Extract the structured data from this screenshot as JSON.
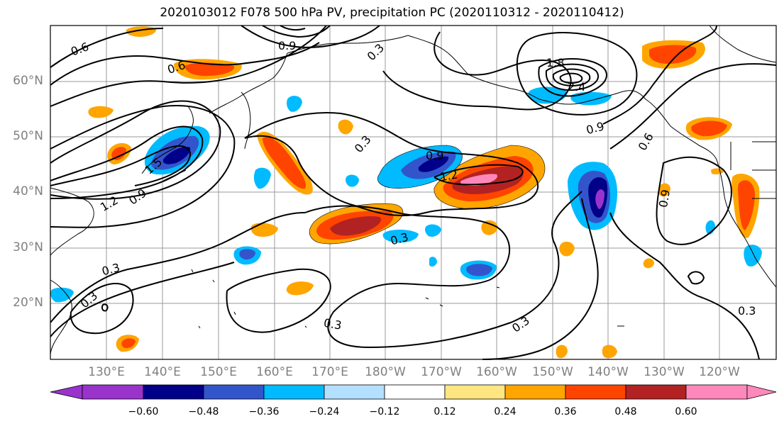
{
  "title": "2020103012 F078 500 hPa PV, precipitation PC (2020110312 - 2020110412)",
  "lat_labels": [
    "60°N",
    "50°N",
    "40°N",
    "30°N",
    "20°N"
  ],
  "lon_labels": [
    "130°E",
    "140°E",
    "150°E",
    "160°E",
    "170°E",
    "180°W",
    "170°W",
    "160°W",
    "150°W",
    "140°W",
    "130°W",
    "120°W"
  ],
  "contour_labels": [
    "0.6",
    "0.6",
    "0.9",
    "1.8",
    "2.4",
    "0.9",
    "0.6",
    "0.9",
    "1.5",
    "1.2",
    "0.9",
    "1.2",
    "0.9",
    "0.3",
    "0.3",
    "0.3",
    "0.3",
    "0.3",
    "0.3",
    "0.3",
    "0.3"
  ],
  "colorbar": {
    "ticks": [
      "−0.60",
      "−0.48",
      "−0.36",
      "−0.24",
      "−0.12",
      "0.12",
      "0.24",
      "0.36",
      "0.48",
      "0.60"
    ],
    "colors": [
      "#9933cc",
      "#000088",
      "#3355cc",
      "#00bbff",
      "#b3e0ff",
      "#ffffff",
      "#ffe680",
      "#ffa500",
      "#ff4400",
      "#b22222",
      "#ff88bb"
    ]
  }
}
